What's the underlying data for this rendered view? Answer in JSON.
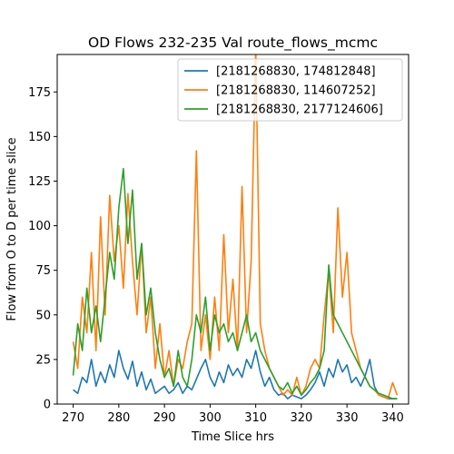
{
  "chart_data": {
    "type": "line",
    "title": "OD Flows 232-235 Val route_flows_mcmc",
    "xlabel": "Time Slice hrs",
    "ylabel": "Flow from O to D per time slice",
    "xlim": [
      266.5,
      343.5
    ],
    "ylim": [
      0,
      196
    ],
    "xticks": [
      270,
      280,
      290,
      300,
      310,
      320,
      330,
      340
    ],
    "yticks": [
      0,
      25,
      50,
      75,
      100,
      125,
      150,
      175
    ],
    "grid": false,
    "legend_position": "top-right",
    "series": [
      {
        "name": "[2181268830, 174812848]",
        "color": "#1f77b4",
        "points": [
          [
            270,
            8
          ],
          [
            271,
            6
          ],
          [
            272,
            15
          ],
          [
            273,
            12
          ],
          [
            274,
            25
          ],
          [
            275,
            10
          ],
          [
            276,
            18
          ],
          [
            277,
            12
          ],
          [
            278,
            22
          ],
          [
            279,
            15
          ],
          [
            280,
            30
          ],
          [
            281,
            20
          ],
          [
            282,
            14
          ],
          [
            283,
            24
          ],
          [
            284,
            10
          ],
          [
            285,
            18
          ],
          [
            286,
            8
          ],
          [
            287,
            14
          ],
          [
            288,
            6
          ],
          [
            289,
            8
          ],
          [
            290,
            10
          ],
          [
            291,
            6
          ],
          [
            292,
            8
          ],
          [
            293,
            12
          ],
          [
            294,
            6
          ],
          [
            295,
            10
          ],
          [
            296,
            8
          ],
          [
            297,
            14
          ],
          [
            298,
            20
          ],
          [
            299,
            25
          ],
          [
            300,
            15
          ],
          [
            301,
            10
          ],
          [
            302,
            18
          ],
          [
            303,
            12
          ],
          [
            304,
            22
          ],
          [
            305,
            16
          ],
          [
            306,
            20
          ],
          [
            307,
            15
          ],
          [
            308,
            25
          ],
          [
            309,
            20
          ],
          [
            310,
            30
          ],
          [
            311,
            18
          ],
          [
            312,
            10
          ],
          [
            313,
            15
          ],
          [
            314,
            8
          ],
          [
            315,
            5
          ],
          [
            316,
            6
          ],
          [
            317,
            3
          ],
          [
            318,
            5
          ],
          [
            319,
            4
          ],
          [
            320,
            3
          ],
          [
            321,
            5
          ],
          [
            322,
            8
          ],
          [
            323,
            12
          ],
          [
            324,
            18
          ],
          [
            325,
            10
          ],
          [
            326,
            20
          ],
          [
            327,
            15
          ],
          [
            328,
            25
          ],
          [
            329,
            18
          ],
          [
            330,
            22
          ],
          [
            331,
            12
          ],
          [
            332,
            15
          ],
          [
            333,
            10
          ],
          [
            334,
            16
          ],
          [
            335,
            25
          ],
          [
            336,
            10
          ],
          [
            337,
            5
          ],
          [
            338,
            4
          ],
          [
            339,
            3
          ],
          [
            340,
            3
          ],
          [
            341,
            3
          ]
        ]
      },
      {
        "name": "[2181268830, 114607252]",
        "color": "#ff7f0e",
        "points": [
          [
            270,
            35
          ],
          [
            271,
            20
          ],
          [
            272,
            60
          ],
          [
            273,
            40
          ],
          [
            274,
            85
          ],
          [
            275,
            30
          ],
          [
            276,
            105
          ],
          [
            277,
            50
          ],
          [
            278,
            117
          ],
          [
            279,
            80
          ],
          [
            280,
            100
          ],
          [
            281,
            65
          ],
          [
            282,
            118
          ],
          [
            283,
            80
          ],
          [
            284,
            50
          ],
          [
            285,
            90
          ],
          [
            286,
            40
          ],
          [
            287,
            60
          ],
          [
            288,
            20
          ],
          [
            289,
            45
          ],
          [
            290,
            15
          ],
          [
            291,
            30
          ],
          [
            292,
            10
          ],
          [
            293,
            25
          ],
          [
            294,
            20
          ],
          [
            295,
            35
          ],
          [
            296,
            45
          ],
          [
            297,
            142
          ],
          [
            298,
            30
          ],
          [
            299,
            50
          ],
          [
            300,
            25
          ],
          [
            301,
            60
          ],
          [
            302,
            30
          ],
          [
            303,
            95
          ],
          [
            304,
            40
          ],
          [
            305,
            70
          ],
          [
            306,
            30
          ],
          [
            307,
            122
          ],
          [
            308,
            40
          ],
          [
            309,
            80
          ],
          [
            310,
            200
          ],
          [
            311,
            45
          ],
          [
            312,
            30
          ],
          [
            313,
            20
          ],
          [
            314,
            15
          ],
          [
            315,
            10
          ],
          [
            316,
            5
          ],
          [
            317,
            8
          ],
          [
            318,
            5
          ],
          [
            319,
            15
          ],
          [
            320,
            5
          ],
          [
            321,
            10
          ],
          [
            322,
            20
          ],
          [
            323,
            25
          ],
          [
            324,
            20
          ],
          [
            325,
            50
          ],
          [
            326,
            75
          ],
          [
            327,
            40
          ],
          [
            328,
            110
          ],
          [
            329,
            60
          ],
          [
            330,
            85
          ],
          [
            331,
            40
          ],
          [
            332,
            30
          ],
          [
            333,
            20
          ],
          [
            334,
            15
          ],
          [
            335,
            10
          ],
          [
            336,
            8
          ],
          [
            337,
            5
          ],
          [
            338,
            4
          ],
          [
            339,
            3
          ],
          [
            340,
            12
          ],
          [
            341,
            5
          ]
        ]
      },
      {
        "name": "[2181268830, 2177124606]",
        "color": "#2ca02c",
        "points": [
          [
            270,
            16
          ],
          [
            271,
            45
          ],
          [
            272,
            30
          ],
          [
            273,
            65
          ],
          [
            274,
            40
          ],
          [
            275,
            55
          ],
          [
            276,
            35
          ],
          [
            277,
            60
          ],
          [
            278,
            85
          ],
          [
            279,
            70
          ],
          [
            280,
            110
          ],
          [
            281,
            132
          ],
          [
            282,
            90
          ],
          [
            283,
            120
          ],
          [
            284,
            70
          ],
          [
            285,
            90
          ],
          [
            286,
            50
          ],
          [
            287,
            65
          ],
          [
            288,
            40
          ],
          [
            289,
            25
          ],
          [
            290,
            15
          ],
          [
            291,
            20
          ],
          [
            292,
            10
          ],
          [
            293,
            30
          ],
          [
            294,
            15
          ],
          [
            295,
            10
          ],
          [
            296,
            25
          ],
          [
            297,
            50
          ],
          [
            298,
            40
          ],
          [
            299,
            60
          ],
          [
            300,
            30
          ],
          [
            301,
            50
          ],
          [
            302,
            40
          ],
          [
            303,
            45
          ],
          [
            304,
            35
          ],
          [
            305,
            40
          ],
          [
            306,
            30
          ],
          [
            307,
            40
          ],
          [
            308,
            50
          ],
          [
            309,
            35
          ],
          [
            310,
            40
          ],
          [
            311,
            30
          ],
          [
            312,
            25
          ],
          [
            313,
            20
          ],
          [
            314,
            15
          ],
          [
            315,
            10
          ],
          [
            316,
            8
          ],
          [
            317,
            12
          ],
          [
            318,
            6
          ],
          [
            319,
            10
          ],
          [
            320,
            5
          ],
          [
            321,
            8
          ],
          [
            322,
            12
          ],
          [
            323,
            15
          ],
          [
            324,
            20
          ],
          [
            325,
            30
          ],
          [
            326,
            78
          ],
          [
            327,
            50
          ],
          [
            328,
            45
          ],
          [
            329,
            40
          ],
          [
            330,
            35
          ],
          [
            331,
            30
          ],
          [
            332,
            25
          ],
          [
            333,
            20
          ],
          [
            334,
            15
          ],
          [
            335,
            10
          ],
          [
            336,
            8
          ],
          [
            337,
            6
          ],
          [
            338,
            5
          ],
          [
            339,
            4
          ],
          [
            340,
            3
          ],
          [
            341,
            3
          ]
        ]
      }
    ]
  }
}
